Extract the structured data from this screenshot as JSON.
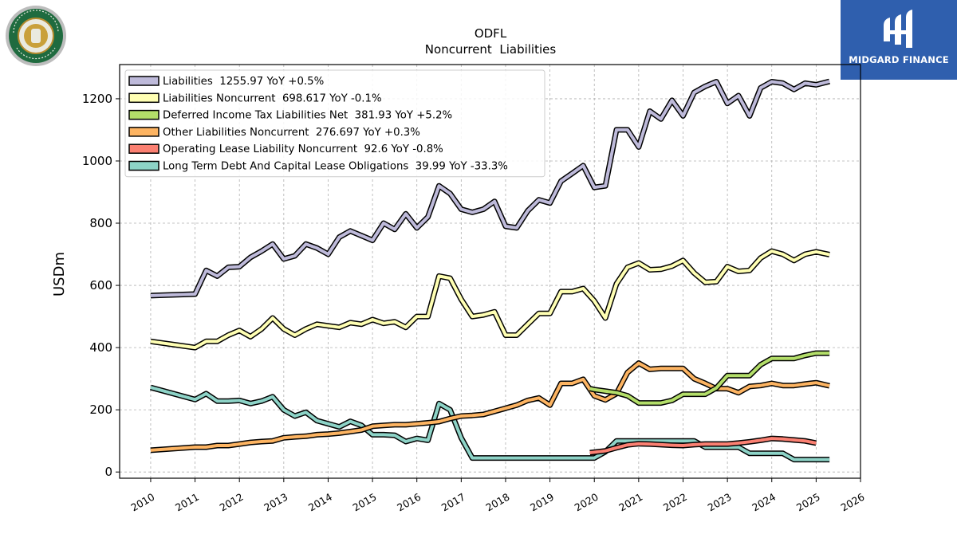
{
  "brand": {
    "name": "MIDGARD FINANCE"
  },
  "company_logo": {
    "ring_text_top": "OLD DOMINION",
    "ring_text_bottom": "FREIGHT LINE"
  },
  "chart_data": {
    "type": "line",
    "title": "ODFL",
    "subtitle": "Noncurrent  Liabilities",
    "ylabel": "USDm",
    "xlabel": "",
    "xlim": [
      2009.3,
      2026.0
    ],
    "ylim": [
      -20,
      1310
    ],
    "xticks": [
      2010,
      2011,
      2012,
      2013,
      2014,
      2015,
      2016,
      2017,
      2018,
      2019,
      2020,
      2021,
      2022,
      2023,
      2024,
      2025,
      2026
    ],
    "yticks": [
      0,
      200,
      400,
      600,
      800,
      1000,
      1200
    ],
    "grid": true,
    "legend_position": "top-left",
    "series": [
      {
        "name": "Liabilities  1255.97 YoY +0.5%",
        "color": "#bebada",
        "points": [
          [
            2010.0,
            567
          ],
          [
            2011.0,
            572
          ],
          [
            2011.25,
            648
          ],
          [
            2011.5,
            630
          ],
          [
            2011.75,
            658
          ],
          [
            2012.0,
            660
          ],
          [
            2012.25,
            690
          ],
          [
            2012.5,
            710
          ],
          [
            2012.75,
            733
          ],
          [
            2013.0,
            685
          ],
          [
            2013.25,
            695
          ],
          [
            2013.5,
            733
          ],
          [
            2013.75,
            720
          ],
          [
            2014.0,
            700
          ],
          [
            2014.25,
            755
          ],
          [
            2014.5,
            775
          ],
          [
            2014.75,
            760
          ],
          [
            2015.0,
            745
          ],
          [
            2015.25,
            800
          ],
          [
            2015.5,
            780
          ],
          [
            2015.75,
            830
          ],
          [
            2016.0,
            785
          ],
          [
            2016.25,
            820
          ],
          [
            2016.5,
            920
          ],
          [
            2016.75,
            895
          ],
          [
            2017.0,
            845
          ],
          [
            2017.25,
            835
          ],
          [
            2017.5,
            845
          ],
          [
            2017.75,
            870
          ],
          [
            2018.0,
            790
          ],
          [
            2018.25,
            785
          ],
          [
            2018.5,
            840
          ],
          [
            2018.75,
            875
          ],
          [
            2019.0,
            865
          ],
          [
            2019.25,
            935
          ],
          [
            2019.5,
            960
          ],
          [
            2019.75,
            985
          ],
          [
            2020.0,
            915
          ],
          [
            2020.25,
            920
          ],
          [
            2020.5,
            1100
          ],
          [
            2020.75,
            1100
          ],
          [
            2021.0,
            1045
          ],
          [
            2021.25,
            1160
          ],
          [
            2021.5,
            1135
          ],
          [
            2021.75,
            1195
          ],
          [
            2022.0,
            1145
          ],
          [
            2022.25,
            1220
          ],
          [
            2022.5,
            1240
          ],
          [
            2022.75,
            1255
          ],
          [
            2023.0,
            1185
          ],
          [
            2023.25,
            1210
          ],
          [
            2023.5,
            1145
          ],
          [
            2023.75,
            1235
          ],
          [
            2024.0,
            1255
          ],
          [
            2024.25,
            1250
          ],
          [
            2024.5,
            1230
          ],
          [
            2024.75,
            1250
          ],
          [
            2025.0,
            1245
          ],
          [
            2025.3,
            1256
          ]
        ]
      },
      {
        "name": "Liabilities Noncurrent  698.617 YoY -0.1%",
        "color": "#ffffb3",
        "points": [
          [
            2010.0,
            420
          ],
          [
            2011.0,
            400
          ],
          [
            2011.25,
            420
          ],
          [
            2011.5,
            420
          ],
          [
            2011.75,
            440
          ],
          [
            2012.0,
            455
          ],
          [
            2012.25,
            435
          ],
          [
            2012.5,
            460
          ],
          [
            2012.75,
            495
          ],
          [
            2013.0,
            460
          ],
          [
            2013.25,
            440
          ],
          [
            2013.5,
            460
          ],
          [
            2013.75,
            475
          ],
          [
            2014.0,
            470
          ],
          [
            2014.25,
            465
          ],
          [
            2014.5,
            480
          ],
          [
            2014.75,
            475
          ],
          [
            2015.0,
            490
          ],
          [
            2015.25,
            478
          ],
          [
            2015.5,
            483
          ],
          [
            2015.75,
            465
          ],
          [
            2016.0,
            500
          ],
          [
            2016.25,
            500
          ],
          [
            2016.5,
            630
          ],
          [
            2016.75,
            623
          ],
          [
            2017.0,
            555
          ],
          [
            2017.25,
            500
          ],
          [
            2017.5,
            505
          ],
          [
            2017.75,
            515
          ],
          [
            2018.0,
            440
          ],
          [
            2018.25,
            440
          ],
          [
            2018.5,
            475
          ],
          [
            2018.75,
            510
          ],
          [
            2019.0,
            510
          ],
          [
            2019.25,
            580
          ],
          [
            2019.5,
            580
          ],
          [
            2019.75,
            590
          ],
          [
            2020.0,
            550
          ],
          [
            2020.25,
            495
          ],
          [
            2020.5,
            605
          ],
          [
            2020.75,
            658
          ],
          [
            2021.0,
            672
          ],
          [
            2021.25,
            650
          ],
          [
            2021.5,
            652
          ],
          [
            2021.75,
            662
          ],
          [
            2022.0,
            680
          ],
          [
            2022.25,
            640
          ],
          [
            2022.5,
            610
          ],
          [
            2022.75,
            612
          ],
          [
            2023.0,
            660
          ],
          [
            2023.25,
            645
          ],
          [
            2023.5,
            648
          ],
          [
            2023.75,
            688
          ],
          [
            2024.0,
            710
          ],
          [
            2024.25,
            700
          ],
          [
            2024.5,
            680
          ],
          [
            2024.75,
            700
          ],
          [
            2025.0,
            708
          ],
          [
            2025.3,
            699
          ]
        ]
      },
      {
        "name": "Deferred Income Tax Liabilities Net  381.93 YoY +5.2%",
        "color": "#b3de69",
        "points": [
          [
            2019.9,
            268
          ],
          [
            2020.0,
            265
          ],
          [
            2020.5,
            255
          ],
          [
            2020.75,
            245
          ],
          [
            2021.0,
            222
          ],
          [
            2021.25,
            222
          ],
          [
            2021.5,
            222
          ],
          [
            2021.75,
            230
          ],
          [
            2022.0,
            250
          ],
          [
            2022.25,
            250
          ],
          [
            2022.5,
            250
          ],
          [
            2022.75,
            270
          ],
          [
            2023.0,
            310
          ],
          [
            2023.25,
            310
          ],
          [
            2023.5,
            310
          ],
          [
            2023.75,
            345
          ],
          [
            2024.0,
            365
          ],
          [
            2024.25,
            365
          ],
          [
            2024.5,
            365
          ],
          [
            2024.75,
            375
          ],
          [
            2025.0,
            382
          ],
          [
            2025.3,
            382
          ]
        ]
      },
      {
        "name": "Other Liabilities Noncurrent  276.697 YoY +0.3%",
        "color": "#fdb462",
        "points": [
          [
            2010.0,
            70
          ],
          [
            2011.0,
            80
          ],
          [
            2011.25,
            80
          ],
          [
            2011.5,
            85
          ],
          [
            2011.75,
            85
          ],
          [
            2012.0,
            90
          ],
          [
            2012.25,
            95
          ],
          [
            2012.5,
            98
          ],
          [
            2012.75,
            100
          ],
          [
            2013.0,
            110
          ],
          [
            2013.25,
            113
          ],
          [
            2013.5,
            115
          ],
          [
            2013.75,
            120
          ],
          [
            2014.0,
            122
          ],
          [
            2014.25,
            125
          ],
          [
            2014.5,
            130
          ],
          [
            2014.75,
            135
          ],
          [
            2015.0,
            147
          ],
          [
            2015.25,
            150
          ],
          [
            2015.5,
            152
          ],
          [
            2015.75,
            152
          ],
          [
            2016.0,
            155
          ],
          [
            2016.25,
            158
          ],
          [
            2016.5,
            162
          ],
          [
            2016.75,
            172
          ],
          [
            2017.0,
            180
          ],
          [
            2017.25,
            182
          ],
          [
            2017.5,
            185
          ],
          [
            2017.75,
            195
          ],
          [
            2018.0,
            205
          ],
          [
            2018.25,
            215
          ],
          [
            2018.5,
            230
          ],
          [
            2018.75,
            238
          ],
          [
            2019.0,
            215
          ],
          [
            2019.25,
            285
          ],
          [
            2019.5,
            285
          ],
          [
            2019.75,
            298
          ],
          [
            2020.0,
            245
          ],
          [
            2020.25,
            232
          ],
          [
            2020.5,
            252
          ],
          [
            2020.75,
            320
          ],
          [
            2021.0,
            350
          ],
          [
            2021.25,
            330
          ],
          [
            2021.5,
            333
          ],
          [
            2021.75,
            333
          ],
          [
            2022.0,
            333
          ],
          [
            2022.25,
            300
          ],
          [
            2022.5,
            285
          ],
          [
            2022.75,
            268
          ],
          [
            2023.0,
            268
          ],
          [
            2023.25,
            255
          ],
          [
            2023.5,
            275
          ],
          [
            2023.75,
            278
          ],
          [
            2024.0,
            285
          ],
          [
            2024.25,
            278
          ],
          [
            2024.5,
            278
          ],
          [
            2024.75,
            283
          ],
          [
            2025.0,
            287
          ],
          [
            2025.3,
            277
          ]
        ]
      },
      {
        "name": "Operating Lease Liability Noncurrent  92.6 YoY -0.8%",
        "color": "#fb8072",
        "points": [
          [
            2019.9,
            62
          ],
          [
            2020.25,
            68
          ],
          [
            2020.5,
            78
          ],
          [
            2020.75,
            87
          ],
          [
            2021.0,
            91
          ],
          [
            2021.25,
            90
          ],
          [
            2021.5,
            88
          ],
          [
            2021.75,
            86
          ],
          [
            2022.0,
            85
          ],
          [
            2022.25,
            88
          ],
          [
            2022.5,
            90
          ],
          [
            2022.75,
            90
          ],
          [
            2023.0,
            90
          ],
          [
            2023.25,
            93
          ],
          [
            2023.5,
            97
          ],
          [
            2023.75,
            102
          ],
          [
            2024.0,
            108
          ],
          [
            2024.25,
            106
          ],
          [
            2024.5,
            103
          ],
          [
            2024.75,
            100
          ],
          [
            2025.0,
            93
          ]
        ]
      },
      {
        "name": "Long Term Debt And Capital Lease Obligations  39.99 YoY -33.3%",
        "color": "#8dd3c7",
        "points": [
          [
            2010.0,
            272
          ],
          [
            2011.0,
            233
          ],
          [
            2011.25,
            252
          ],
          [
            2011.5,
            228
          ],
          [
            2011.75,
            228
          ],
          [
            2012.0,
            230
          ],
          [
            2012.25,
            220
          ],
          [
            2012.5,
            228
          ],
          [
            2012.75,
            242
          ],
          [
            2013.0,
            200
          ],
          [
            2013.25,
            180
          ],
          [
            2013.5,
            192
          ],
          [
            2013.75,
            165
          ],
          [
            2014.0,
            155
          ],
          [
            2014.25,
            145
          ],
          [
            2014.5,
            163
          ],
          [
            2014.75,
            150
          ],
          [
            2015.0,
            120
          ],
          [
            2015.25,
            120
          ],
          [
            2015.5,
            118
          ],
          [
            2015.75,
            98
          ],
          [
            2016.0,
            108
          ],
          [
            2016.25,
            102
          ],
          [
            2016.5,
            220
          ],
          [
            2016.75,
            200
          ],
          [
            2017.0,
            110
          ],
          [
            2017.25,
            45
          ],
          [
            2017.5,
            45
          ],
          [
            2017.75,
            45
          ],
          [
            2018.0,
            45
          ],
          [
            2018.25,
            45
          ],
          [
            2018.5,
            45
          ],
          [
            2018.75,
            45
          ],
          [
            2019.0,
            45
          ],
          [
            2019.25,
            45
          ],
          [
            2019.5,
            45
          ],
          [
            2019.75,
            45
          ],
          [
            2020.0,
            45
          ],
          [
            2020.25,
            65
          ],
          [
            2020.5,
            100
          ],
          [
            2020.75,
            100
          ],
          [
            2021.0,
            100
          ],
          [
            2021.25,
            100
          ],
          [
            2021.5,
            100
          ],
          [
            2021.75,
            100
          ],
          [
            2022.0,
            100
          ],
          [
            2022.25,
            100
          ],
          [
            2022.5,
            80
          ],
          [
            2022.75,
            80
          ],
          [
            2023.0,
            80
          ],
          [
            2023.25,
            80
          ],
          [
            2023.5,
            60
          ],
          [
            2023.75,
            60
          ],
          [
            2024.0,
            60
          ],
          [
            2024.25,
            60
          ],
          [
            2024.5,
            40
          ],
          [
            2024.75,
            40
          ],
          [
            2025.0,
            40
          ],
          [
            2025.3,
            40
          ]
        ]
      }
    ]
  }
}
